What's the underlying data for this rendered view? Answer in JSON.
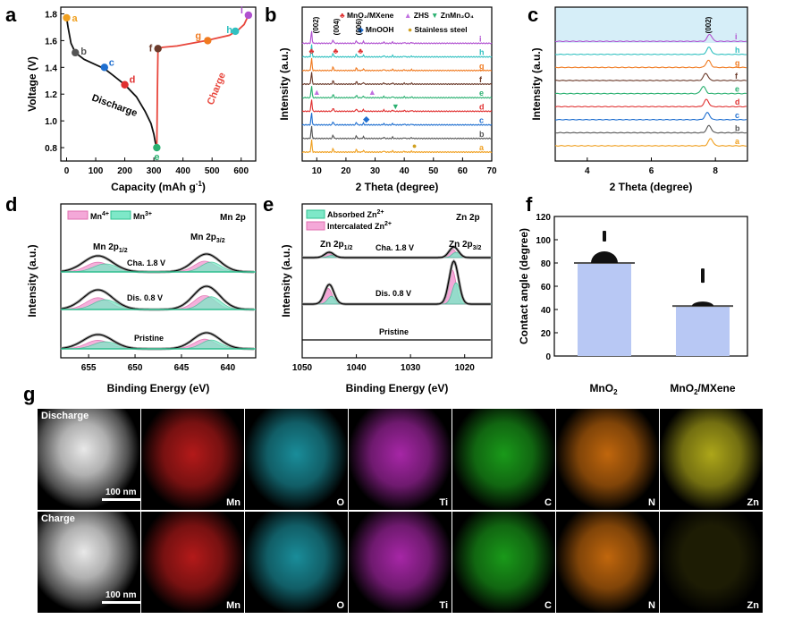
{
  "panels": {
    "a": {
      "label": "a"
    },
    "b": {
      "label": "b"
    },
    "c": {
      "label": "c"
    },
    "d": {
      "label": "d"
    },
    "e": {
      "label": "e"
    },
    "f": {
      "label": "f"
    },
    "g": {
      "label": "g"
    }
  },
  "chart_data": [
    {
      "id": "a",
      "type": "line",
      "xlabel": "Capacity (mAh g⁻¹)",
      "ylabel": "Voltage (V)",
      "xlim": [
        -20,
        650
      ],
      "ylim": [
        0.7,
        1.85
      ],
      "xticks": [
        "0",
        "100",
        "200",
        "300",
        "400",
        "500",
        "600"
      ],
      "yticks": [
        "0.8",
        "1.0",
        "1.2",
        "1.4",
        "1.6",
        "1.8"
      ],
      "annotations": [
        "Discharge",
        "Charge"
      ],
      "series": [
        {
          "label": "Discharge",
          "color": "#111111",
          "x": [
            0,
            5,
            15,
            30,
            60,
            100,
            130,
            160,
            200,
            240,
            270,
            290,
            300,
            305,
            310
          ],
          "y": [
            1.77,
            1.7,
            1.58,
            1.51,
            1.46,
            1.42,
            1.39,
            1.34,
            1.27,
            1.18,
            1.07,
            0.98,
            0.9,
            0.84,
            0.8
          ]
        },
        {
          "label": "Charge",
          "color": "#e8463c",
          "x": [
            310,
            312,
            314,
            330,
            380,
            430,
            480,
            520,
            560,
            590,
            610,
            625
          ],
          "y": [
            0.8,
            1.2,
            1.54,
            1.55,
            1.56,
            1.58,
            1.6,
            1.62,
            1.64,
            1.68,
            1.72,
            1.79
          ]
        }
      ],
      "points": [
        {
          "label": "a",
          "x": 0,
          "y": 1.77,
          "color": "#f0a020"
        },
        {
          "label": "b",
          "x": 30,
          "y": 1.51,
          "color": "#555555"
        },
        {
          "label": "c",
          "x": 130,
          "y": 1.4,
          "color": "#1f6fd0"
        },
        {
          "label": "d",
          "x": 200,
          "y": 1.27,
          "color": "#e03030"
        },
        {
          "label": "e",
          "x": 310,
          "y": 0.8,
          "color": "#2ab070"
        },
        {
          "label": "f",
          "x": 314,
          "y": 1.54,
          "color": "#6b3a2a"
        },
        {
          "label": "g",
          "x": 485,
          "y": 1.6,
          "color": "#f07a20"
        },
        {
          "label": "h",
          "x": 580,
          "y": 1.67,
          "color": "#30c0c0"
        },
        {
          "label": "i",
          "x": 625,
          "y": 1.79,
          "color": "#b050d0"
        }
      ]
    },
    {
      "id": "b",
      "type": "line",
      "xlabel": "2 Theta (degree)",
      "ylabel": "Intensity (a.u.)",
      "xlim": [
        5,
        70
      ],
      "xticks": [
        "10",
        "20",
        "30",
        "40",
        "50",
        "60",
        "70"
      ],
      "legend": [
        "MnO₂/MXene",
        "ZHS",
        "ZnMn₂O₄",
        "MnOOH",
        "Stainless steel"
      ],
      "peak_labels": [
        "(002)",
        "(004)",
        "(006)"
      ],
      "series": [
        {
          "name": "a",
          "color": "#f0a020"
        },
        {
          "name": "b",
          "color": "#555555"
        },
        {
          "name": "c",
          "color": "#1f6fd0"
        },
        {
          "name": "d",
          "color": "#e03030"
        },
        {
          "name": "e",
          "color": "#2ab070"
        },
        {
          "name": "f",
          "color": "#6b3a2a"
        },
        {
          "name": "g",
          "color": "#f07a20"
        },
        {
          "name": "h",
          "color": "#30c0c0"
        },
        {
          "name": "i",
          "color": "#b050d0"
        }
      ]
    },
    {
      "id": "c",
      "type": "line",
      "xlabel": "2 Theta (degree)",
      "ylabel": "Intensity (a.u.)",
      "xlim": [
        3,
        9
      ],
      "xticks": [
        "4",
        "6",
        "8"
      ],
      "peak_labels": [
        "(002)"
      ],
      "series": [
        {
          "name": "a",
          "color": "#f0a020"
        },
        {
          "name": "b",
          "color": "#555555"
        },
        {
          "name": "c",
          "color": "#1f6fd0"
        },
        {
          "name": "d",
          "color": "#e03030"
        },
        {
          "name": "e",
          "color": "#2ab070"
        },
        {
          "name": "f",
          "color": "#6b3a2a"
        },
        {
          "name": "g",
          "color": "#f07a20"
        },
        {
          "name": "h",
          "color": "#30c0c0"
        },
        {
          "name": "i",
          "color": "#b050d0"
        }
      ]
    },
    {
      "id": "d",
      "type": "line",
      "title": "Mn 2p",
      "xlabel": "Binding Energy (eV)",
      "ylabel": "Intensity (a.u.)",
      "xlim": [
        658,
        637
      ],
      "xticks": [
        "655",
        "650",
        "645",
        "640"
      ],
      "legend": [
        "Mn⁴⁺",
        "Mn³⁺"
      ],
      "annotations": [
        "Mn 2p₁/₂",
        "Mn 2p₃/₂",
        "Cha. 1.8 V",
        "Dis. 0.8 V",
        "Pristine"
      ],
      "series_labels": [
        "Cha. 1.8 V",
        "Dis. 0.8 V",
        "Pristine"
      ]
    },
    {
      "id": "e",
      "type": "line",
      "title": "Zn 2p",
      "xlabel": "Binding Energy (eV)",
      "ylabel": "Intensity (a.u.)",
      "xlim": [
        1050,
        1015
      ],
      "xticks": [
        "1050",
        "1040",
        "1030",
        "1020"
      ],
      "legend": [
        "Absorbed Zn²⁺",
        "Intercalated Zn²⁺"
      ],
      "annotations": [
        "Zn 2p₁/₂",
        "Zn 2p₃/₂",
        "Cha. 1.8 V",
        "Dis. 0.8 V",
        "Pristine"
      ],
      "series_labels": [
        "Cha. 1.8 V",
        "Dis. 0.8 V",
        "Pristine"
      ]
    },
    {
      "id": "f",
      "type": "bar",
      "categories": [
        "MnO₂",
        "MnO₂/MXene"
      ],
      "values": [
        80,
        43
      ],
      "ylabel": "Contact angle (degree)",
      "ylim": [
        0,
        120
      ],
      "yticks": [
        "0",
        "20",
        "40",
        "60",
        "80",
        "100",
        "120"
      ]
    }
  ],
  "mapping": {
    "rows": [
      {
        "label": "Discharge",
        "scale": "100 nm"
      },
      {
        "label": "Charge",
        "scale": "100 nm"
      }
    ],
    "elements": [
      {
        "name": "Mn",
        "color": "#e02020"
      },
      {
        "name": "O",
        "color": "#20b0c0"
      },
      {
        "name": "Ti",
        "color": "#d030d0"
      },
      {
        "name": "C",
        "color": "#20c020"
      },
      {
        "name": "N",
        "color": "#f08010"
      },
      {
        "name": "Zn",
        "color": "#d8d020"
      }
    ]
  }
}
